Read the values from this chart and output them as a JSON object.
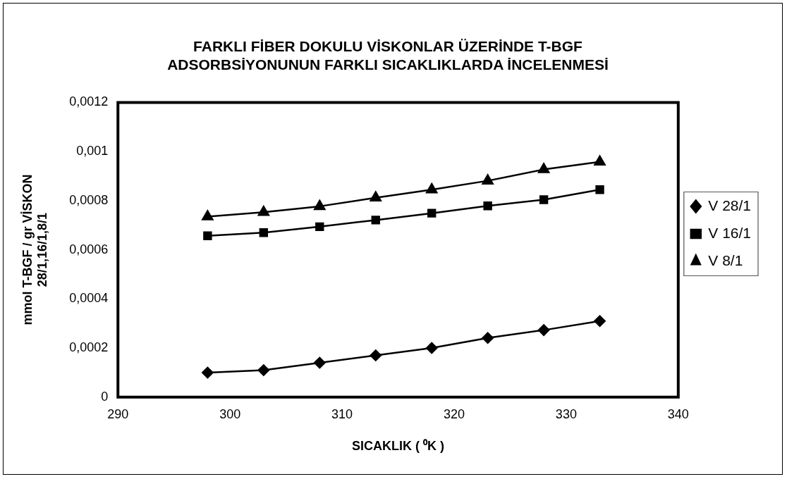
{
  "chart_data": {
    "type": "line",
    "title": "FARKLI FİBER DOKULU VİSKONLAR ÜZERİNDE T-BGF\nADSORBSİYONUNUN FARKLI SICAKLIKLARDA İNCELENMESİ",
    "xlabel": "SICAKLIK ( ⁰K )",
    "ylabel": "mmol T-BGF / gr VİSKON\n28/1,16/1,8/1",
    "x": [
      298,
      303,
      308,
      313,
      318,
      323,
      328,
      333
    ],
    "series": [
      {
        "name": "V 28/1",
        "color": "#000000",
        "marker": "diamond",
        "values": [
          0.0001,
          0.00011,
          0.00014,
          0.00017,
          0.0002,
          0.000241,
          0.000273,
          0.00031
        ]
      },
      {
        "name": "V 16/1",
        "color": "#000000",
        "marker": "square",
        "values": [
          0.000657,
          0.00067,
          0.000694,
          0.000721,
          0.000749,
          0.000779,
          0.000804,
          0.000845
        ]
      },
      {
        "name": "V 8/1",
        "color": "#000000",
        "marker": "triangle",
        "values": [
          0.000735,
          0.000753,
          0.000777,
          0.000812,
          0.000845,
          0.000881,
          0.000927,
          0.000958
        ]
      }
    ],
    "xlim": [
      290,
      340
    ],
    "xticks": [
      290,
      300,
      310,
      320,
      330,
      340
    ],
    "ylim": [
      0,
      0.0012
    ],
    "yticks": [
      {
        "value": 0,
        "label": "0"
      },
      {
        "value": 0.0002,
        "label": "0,0002"
      },
      {
        "value": 0.0004,
        "label": "0,0004"
      },
      {
        "value": 0.0006,
        "label": "0,0006"
      },
      {
        "value": 0.0008,
        "label": "0,0008"
      },
      {
        "value": 0.001,
        "label": "0,001"
      },
      {
        "value": 0.0012,
        "label": "0,0012"
      }
    ],
    "grid": false,
    "legend": "right",
    "line_style": "solid"
  }
}
